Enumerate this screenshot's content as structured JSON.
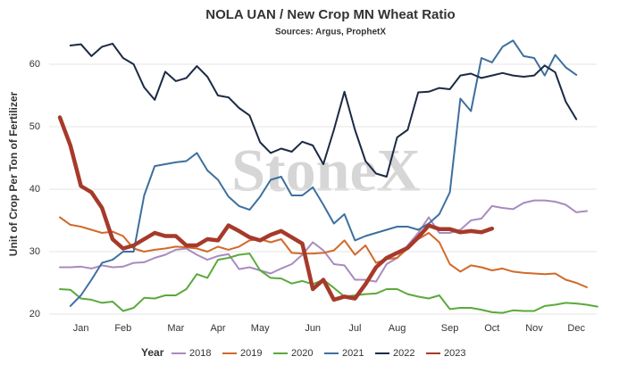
{
  "chart_data": {
    "type": "line",
    "title": "NOLA UAN / New Crop MN Wheat Ratio",
    "subtitle": "Sources: Argus, ProphetX",
    "y_label": "Unit of Crop Per Ton of Fertilizer",
    "legend_title": "Year",
    "watermark": "StoneX",
    "categories": [
      null,
      null,
      "Jan",
      null,
      null,
      null,
      "Feb",
      null,
      null,
      null,
      null,
      "Mar",
      null,
      null,
      null,
      "Apr",
      null,
      null,
      null,
      "May",
      null,
      null,
      null,
      null,
      "Jun",
      null,
      null,
      null,
      "Jul",
      null,
      null,
      null,
      "Aug",
      null,
      null,
      null,
      null,
      "Sep",
      null,
      null,
      null,
      "Oct",
      null,
      null,
      null,
      "Nov",
      null,
      null,
      null,
      "Dec",
      null,
      null
    ],
    "ylim": [
      20,
      65
    ],
    "yticks": [
      20,
      30,
      40,
      50,
      60
    ],
    "grid": true,
    "legend": "bottom",
    "series": [
      {
        "name": "2018",
        "color": "#a98bbf",
        "width": 2,
        "values": [
          27.5,
          27.5,
          27.6,
          27.3,
          27.8,
          27.5,
          27.6,
          28.2,
          28.3,
          29,
          29.5,
          30.3,
          30.5,
          29.5,
          28.7,
          29.3,
          29.6,
          27.2,
          27.5,
          27,
          26.5,
          27.3,
          28,
          29.5,
          31.5,
          30.2,
          28,
          27.8,
          25.5,
          25.5,
          25.2,
          28,
          29,
          31,
          33,
          35.5,
          33,
          33,
          33.5,
          35,
          35.3,
          37.3,
          37,
          36.8,
          37.8,
          38.2,
          38.2,
          38,
          37.5,
          36.3,
          36.5,
          null
        ]
      },
      {
        "name": "2019",
        "color": "#d2692a",
        "width": 2,
        "values": [
          35.5,
          34.3,
          34,
          33.5,
          33,
          33.2,
          32.5,
          30.5,
          30,
          30.3,
          30.5,
          30.8,
          30.7,
          30.5,
          30,
          30.8,
          30.3,
          30.8,
          31.8,
          32,
          31.5,
          32,
          29.8,
          29.7,
          29.7,
          29.8,
          30.2,
          31.8,
          29.5,
          31,
          28.2,
          28.8,
          29,
          30.5,
          32,
          33,
          31.5,
          28,
          26.8,
          27.8,
          27.5,
          27,
          27.3,
          26.8,
          26.6,
          26.5,
          26.4,
          26.5,
          25.5,
          25,
          24.3,
          null
        ]
      },
      {
        "name": "2020",
        "color": "#5aaa3c",
        "width": 2,
        "values": [
          24,
          23.9,
          22.5,
          22.3,
          21.8,
          22,
          20.5,
          21,
          22.6,
          22.5,
          23,
          23,
          24,
          26.4,
          25.8,
          28.7,
          29,
          29.5,
          29.7,
          27,
          25.8,
          25.7,
          24.9,
          25.3,
          24.8,
          25.5,
          24.2,
          22.8,
          23,
          23.2,
          23.3,
          24,
          24,
          23.2,
          22.8,
          22.5,
          23,
          20.8,
          21,
          21,
          20.7,
          20.3,
          20.2,
          20.6,
          20.5,
          20.5,
          21.3,
          21.5,
          21.8,
          21.7,
          21.5,
          21.2
        ]
      },
      {
        "name": "2021",
        "color": "#3e6f9e",
        "width": 2,
        "values": [
          null,
          21.3,
          23,
          25.5,
          28.2,
          28.7,
          30,
          30,
          39,
          43.7,
          44,
          44.3,
          44.5,
          45.8,
          43,
          41.5,
          38.8,
          37.3,
          36.7,
          38.8,
          41.5,
          42,
          39,
          39,
          40.3,
          37.5,
          34.5,
          36,
          31.8,
          32.5,
          33,
          33.5,
          34,
          34,
          33.5,
          34.5,
          36,
          39.5,
          54.5,
          52.5,
          61,
          60.3,
          62.8,
          63.8,
          61.3,
          61,
          58.2,
          61.5,
          59.5,
          58.3,
          null,
          null
        ]
      },
      {
        "name": "2022",
        "color": "#1c2a44",
        "width": 2,
        "values": [
          null,
          63,
          63.2,
          61.3,
          62.8,
          63.3,
          61,
          60,
          56.3,
          54.3,
          58.8,
          57.3,
          57.8,
          59.7,
          58,
          55,
          54.7,
          53,
          51.8,
          47.5,
          45.8,
          46.5,
          46,
          47.6,
          47,
          44,
          49.5,
          55.6,
          49.5,
          44.5,
          42.5,
          42,
          48.3,
          49.5,
          55.5,
          55.6,
          56.2,
          56,
          58.2,
          58.5,
          57.8,
          58.2,
          58.6,
          58.2,
          58,
          58.2,
          59.8,
          58.7,
          54,
          51.2,
          null,
          null
        ]
      },
      {
        "name": "2023",
        "color": "#a63a2a",
        "width": 4.5,
        "values": [
          51.5,
          47,
          40.5,
          39.5,
          37,
          32,
          30.5,
          31,
          32,
          33,
          32.5,
          32.5,
          31,
          31,
          32,
          31.8,
          34.2,
          33.3,
          32.3,
          31.8,
          32.7,
          33.3,
          32.3,
          31.3,
          24,
          25.5,
          22.3,
          22.8,
          22.5,
          24.8,
          27.5,
          29,
          29.8,
          30.6,
          32.3,
          34.2,
          33.6,
          33.6,
          33.1,
          33.3,
          33.1,
          33.7,
          null,
          null,
          null,
          null,
          null,
          null,
          null,
          null,
          null,
          null
        ]
      }
    ]
  }
}
